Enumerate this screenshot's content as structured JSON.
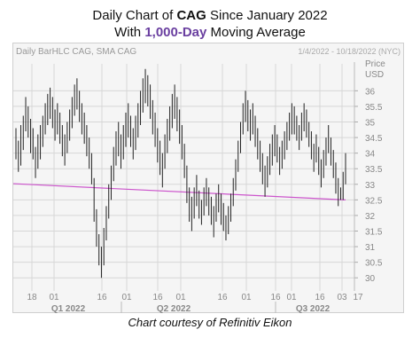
{
  "title": {
    "line1_pre": "Daily Chart of ",
    "line1_ticker": "CAG",
    "line1_post": " Since January 2022",
    "line2_pre": "With ",
    "line2_accent": "1,000-Day",
    "line2_post": " Moving Average"
  },
  "credit": "Chart courtesy of Refinitiv Eikon",
  "colors": {
    "bars": "#222222",
    "ma": "#cc55cc",
    "grid": "#d6d6d6",
    "axis_text": "#888888",
    "panel": "#f5f5f5"
  },
  "chart_data": {
    "type": "ohlc",
    "title": "Daily BarHLC CAG, SMA CAG",
    "date_range": "1/4/2022 - 10/18/2022 (NYC)",
    "ylabel": "Price USD",
    "ylim": [
      29.75,
      36.75
    ],
    "yticks": [
      30,
      30.5,
      31,
      31.5,
      32,
      32.5,
      33,
      33.5,
      34,
      34.5,
      35,
      35.5,
      36
    ],
    "xticks": [
      "18",
      "01",
      "16",
      "01",
      "16",
      "01",
      "16",
      "01",
      "16",
      "01",
      "16",
      "03",
      "17"
    ],
    "quarters": [
      "Q1 2022",
      "Q2 2022",
      "Q3 2022"
    ],
    "grid": true,
    "series": [
      {
        "name": "CAG",
        "kind": "HLC bars",
        "hl": [
          [
            34.8,
            33.8
          ],
          [
            34.4,
            33.4
          ],
          [
            34.9,
            33.6
          ],
          [
            35.2,
            34.1
          ],
          [
            35.8,
            34.7
          ],
          [
            35.5,
            34.5
          ],
          [
            35.1,
            34.0
          ],
          [
            34.8,
            33.8
          ],
          [
            34.2,
            33.2
          ],
          [
            34.6,
            33.5
          ],
          [
            34.9,
            33.8
          ],
          [
            35.2,
            34.2
          ],
          [
            35.6,
            34.6
          ],
          [
            35.9,
            34.9
          ],
          [
            36.1,
            35.1
          ],
          [
            35.8,
            34.8
          ],
          [
            35.4,
            34.4
          ],
          [
            35.6,
            34.6
          ],
          [
            35.3,
            34.3
          ],
          [
            34.9,
            33.9
          ],
          [
            34.6,
            33.6
          ],
          [
            35.0,
            34.0
          ],
          [
            35.4,
            34.4
          ],
          [
            35.8,
            34.8
          ],
          [
            36.2,
            35.2
          ],
          [
            36.4,
            35.4
          ],
          [
            36.0,
            35.0
          ],
          [
            35.6,
            34.6
          ],
          [
            35.3,
            34.3
          ],
          [
            34.9,
            33.9
          ],
          [
            34.5,
            33.5
          ],
          [
            34.0,
            33.0
          ],
          [
            33.2,
            31.8
          ],
          [
            32.2,
            31.0
          ],
          [
            31.4,
            30.4
          ],
          [
            31.0,
            30.0
          ],
          [
            31.6,
            30.4
          ],
          [
            32.3,
            31.2
          ],
          [
            33.0,
            31.9
          ],
          [
            33.6,
            32.5
          ],
          [
            34.2,
            33.1
          ],
          [
            34.7,
            33.6
          ],
          [
            35.0,
            33.9
          ],
          [
            34.6,
            33.5
          ],
          [
            34.9,
            33.8
          ],
          [
            35.3,
            34.2
          ],
          [
            35.6,
            34.5
          ],
          [
            35.2,
            34.2
          ],
          [
            34.8,
            33.8
          ],
          [
            35.2,
            34.1
          ],
          [
            35.6,
            34.5
          ],
          [
            36.0,
            34.9
          ],
          [
            36.4,
            35.3
          ],
          [
            36.7,
            35.6
          ],
          [
            36.5,
            35.5
          ],
          [
            36.2,
            35.1
          ],
          [
            35.7,
            34.6
          ],
          [
            35.3,
            34.2
          ],
          [
            34.8,
            33.7
          ],
          [
            34.4,
            33.3
          ],
          [
            34.0,
            32.9
          ],
          [
            34.6,
            33.5
          ],
          [
            35.1,
            34.0
          ],
          [
            35.5,
            34.4
          ],
          [
            35.9,
            34.8
          ],
          [
            36.2,
            35.1
          ],
          [
            35.8,
            34.7
          ],
          [
            35.4,
            34.3
          ],
          [
            34.9,
            33.8
          ],
          [
            34.3,
            33.2
          ],
          [
            33.6,
            32.4
          ],
          [
            32.9,
            31.8
          ],
          [
            32.6,
            31.5
          ],
          [
            32.9,
            31.9
          ],
          [
            33.3,
            32.3
          ],
          [
            32.8,
            31.9
          ],
          [
            32.5,
            31.7
          ],
          [
            32.9,
            32.0
          ],
          [
            33.2,
            32.3
          ],
          [
            32.9,
            32.0
          ],
          [
            32.6,
            31.7
          ],
          [
            32.3,
            31.3
          ],
          [
            32.7,
            31.8
          ],
          [
            33.0,
            32.1
          ],
          [
            32.7,
            31.7
          ],
          [
            32.4,
            31.5
          ],
          [
            32.0,
            31.2
          ],
          [
            32.3,
            31.4
          ],
          [
            32.7,
            31.8
          ],
          [
            33.2,
            32.3
          ],
          [
            33.8,
            32.8
          ],
          [
            34.4,
            33.4
          ],
          [
            35.0,
            34.0
          ],
          [
            35.6,
            34.6
          ],
          [
            36.0,
            35.0
          ],
          [
            35.7,
            34.7
          ],
          [
            35.4,
            34.4
          ],
          [
            35.6,
            34.6
          ],
          [
            35.2,
            34.2
          ],
          [
            34.8,
            33.8
          ],
          [
            34.4,
            33.4
          ],
          [
            34.0,
            33.0
          ],
          [
            33.6,
            32.6
          ],
          [
            33.9,
            32.9
          ],
          [
            34.3,
            33.3
          ],
          [
            34.6,
            33.6
          ],
          [
            34.9,
            33.9
          ],
          [
            34.6,
            33.7
          ],
          [
            34.2,
            33.3
          ],
          [
            34.4,
            33.5
          ],
          [
            34.7,
            33.8
          ],
          [
            35.0,
            34.1
          ],
          [
            35.3,
            34.4
          ],
          [
            35.6,
            34.6
          ],
          [
            35.5,
            34.6
          ],
          [
            35.2,
            34.4
          ],
          [
            34.9,
            34.1
          ],
          [
            35.3,
            34.4
          ],
          [
            35.6,
            34.7
          ],
          [
            35.4,
            34.5
          ],
          [
            35.0,
            34.2
          ],
          [
            34.7,
            33.8
          ],
          [
            34.3,
            33.4
          ],
          [
            34.6,
            33.7
          ],
          [
            34.2,
            33.3
          ],
          [
            33.8,
            32.9
          ],
          [
            34.1,
            33.2
          ],
          [
            34.5,
            33.6
          ],
          [
            34.9,
            34.0
          ],
          [
            34.5,
            33.6
          ],
          [
            34.1,
            33.2
          ],
          [
            33.7,
            32.7
          ],
          [
            33.2,
            32.3
          ],
          [
            32.9,
            32.5
          ],
          [
            33.4,
            32.5
          ],
          [
            34.0,
            33.0
          ]
        ]
      },
      {
        "name": "SMA CAG",
        "kind": "1,000-day simple moving average",
        "endpoints": [
          [
            0,
            33.02
          ],
          [
            135,
            32.5
          ]
        ]
      }
    ]
  }
}
